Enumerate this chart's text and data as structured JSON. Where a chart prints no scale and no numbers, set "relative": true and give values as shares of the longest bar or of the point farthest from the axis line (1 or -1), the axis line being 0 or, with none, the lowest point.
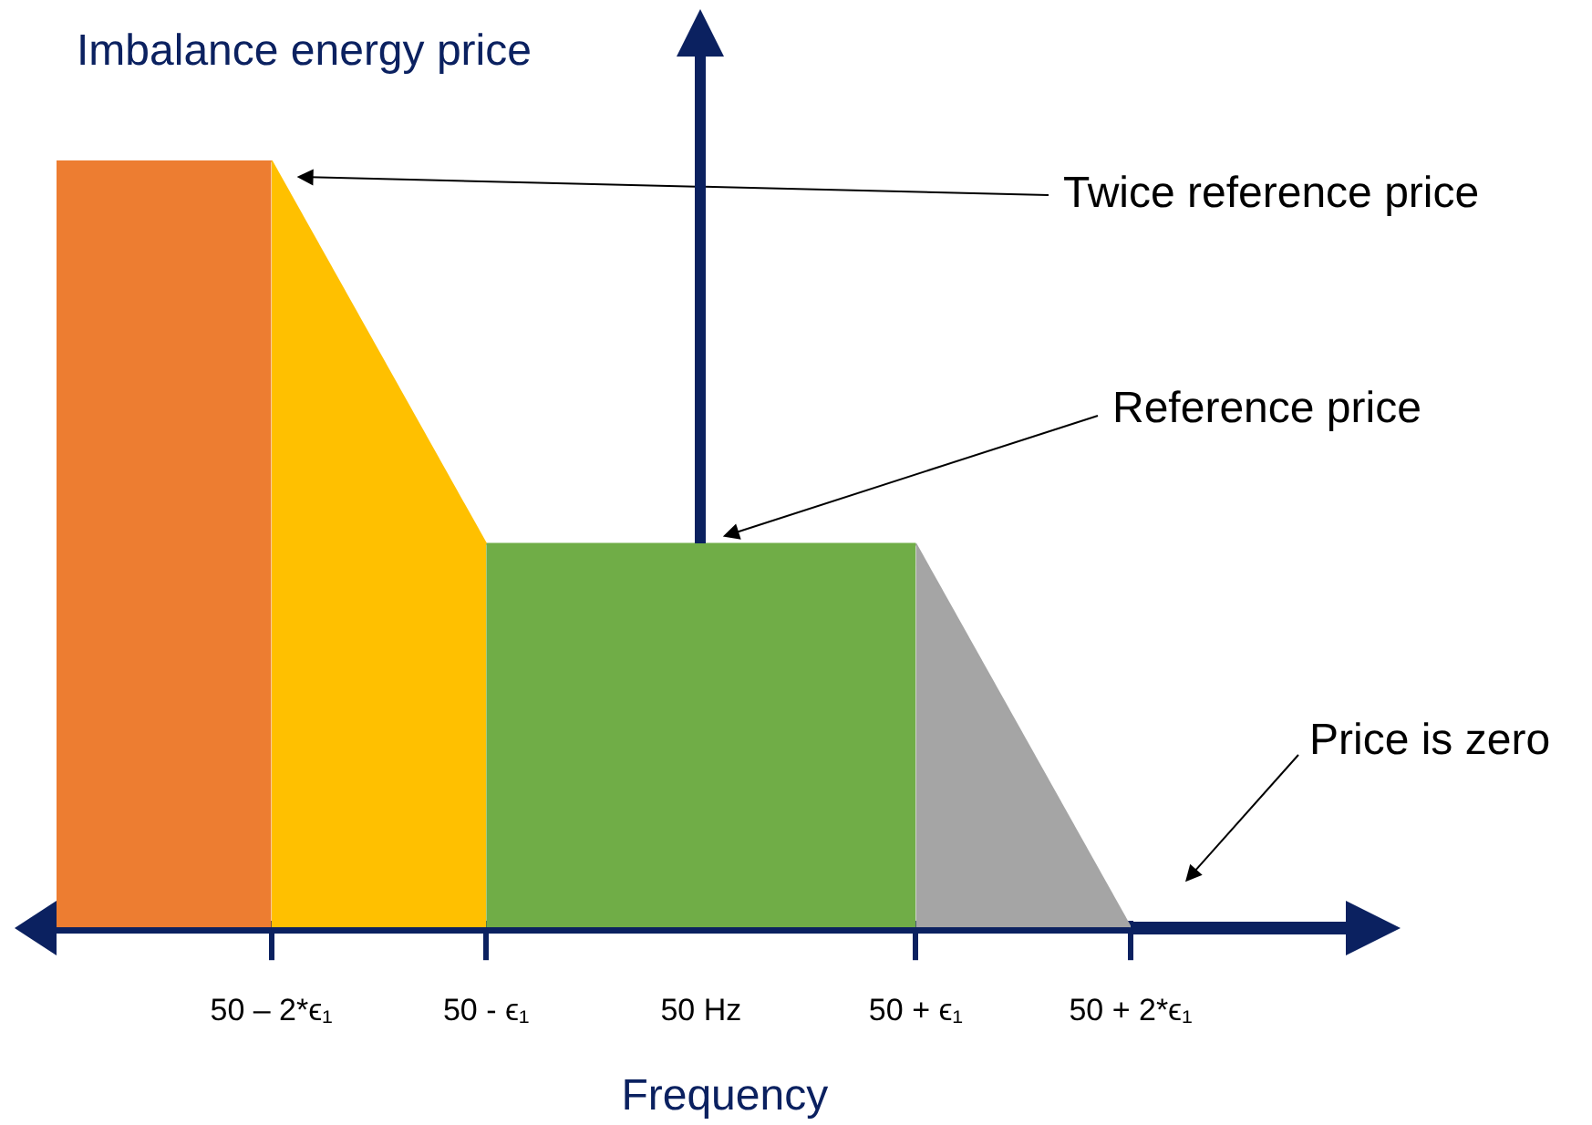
{
  "chart_data": {
    "type": "area",
    "relative": true,
    "xlabel": "Frequency",
    "ylabel": "Imbalance energy price",
    "categories": [
      null,
      "50 – 2*ϵ₁",
      "50 - ϵ₁",
      "50 Hz",
      "50 + ϵ₁",
      "50 + 2*ϵ₁"
    ],
    "series": [
      {
        "color": "#ed7d31",
        "values": [
          1,
          1,
          null,
          null,
          null,
          null
        ]
      },
      {
        "color": "#ffc000",
        "values": [
          null,
          1,
          0.5,
          null,
          null,
          null
        ]
      },
      {
        "color": "#70ad47",
        "values": [
          null,
          null,
          0.5,
          0.5,
          0.5,
          null
        ]
      },
      {
        "color": "#a5a5a5",
        "values": [
          null,
          null,
          null,
          null,
          0.5,
          0
        ]
      }
    ],
    "annotations": [
      "Twice reference price",
      "Reference price",
      "Price is zero"
    ],
    "legend": false
  }
}
